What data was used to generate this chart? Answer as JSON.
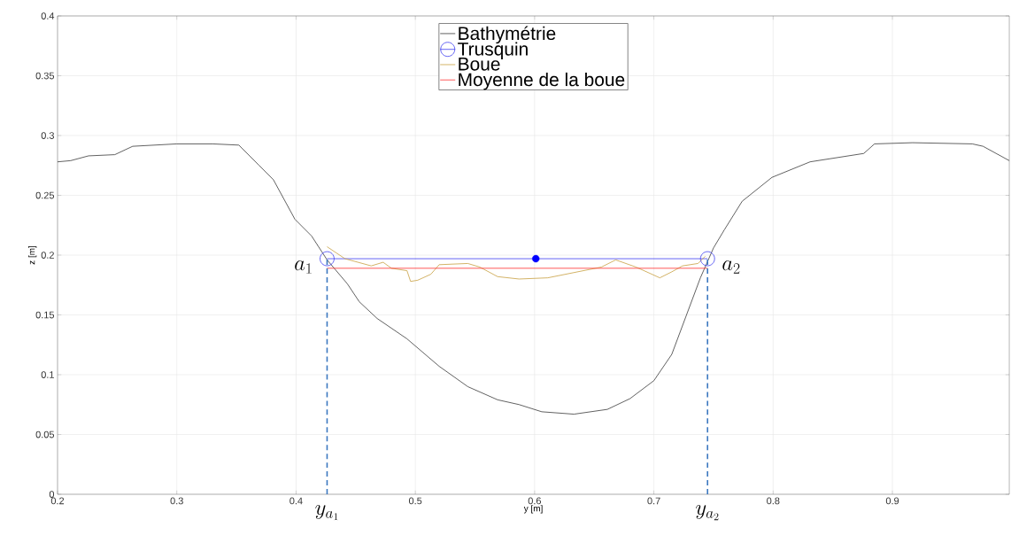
{
  "chart_data": {
    "type": "line",
    "xlabel": "y [m]",
    "ylabel": "z [m]",
    "xlim": [
      0.2,
      0.998
    ],
    "ylim": [
      0,
      0.4
    ],
    "xticks": [
      0.2,
      0.3,
      0.4,
      0.5,
      0.6,
      0.7,
      0.8,
      0.9
    ],
    "yticks": [
      0,
      0.05,
      0.1,
      0.15,
      0.2,
      0.25,
      0.3,
      0.35,
      0.4
    ],
    "grid": true,
    "legend": "top",
    "series": [
      {
        "name": "Bathymétrie",
        "color": "#3a3a3a",
        "x": [
          0.2,
          0.211,
          0.226,
          0.248,
          0.263,
          0.3,
          0.33,
          0.352,
          0.369,
          0.381,
          0.399,
          0.413,
          0.426,
          0.443,
          0.453,
          0.468,
          0.493,
          0.52,
          0.544,
          0.569,
          0.587,
          0.606,
          0.633,
          0.661,
          0.68,
          0.7,
          0.715,
          0.727,
          0.739,
          0.75,
          0.759,
          0.774,
          0.799,
          0.831,
          0.876,
          0.885,
          0.917,
          0.967,
          0.976,
          0.998
        ],
        "values": [
          0.278,
          0.279,
          0.283,
          0.284,
          0.291,
          0.293,
          0.293,
          0.292,
          0.275,
          0.263,
          0.23,
          0.216,
          0.196,
          0.176,
          0.161,
          0.147,
          0.13,
          0.107,
          0.09,
          0.079,
          0.075,
          0.069,
          0.067,
          0.071,
          0.08,
          0.095,
          0.117,
          0.149,
          0.181,
          0.206,
          0.221,
          0.245,
          0.265,
          0.278,
          0.285,
          0.293,
          0.294,
          0.293,
          0.291,
          0.279
        ]
      },
      {
        "name": "Trusquin",
        "color": "#3c3cf0",
        "marker": "circle",
        "x": [
          0.426,
          0.745
        ],
        "values": [
          0.197,
          0.197
        ]
      },
      {
        "type": "scatter",
        "color": "#0000ff",
        "marker": "circle",
        "x": [
          0.601
        ],
        "values": [
          0.197
        ]
      },
      {
        "name": "Boue",
        "color": "#c8a040",
        "x": [
          0.426,
          0.441,
          0.463,
          0.473,
          0.48,
          0.493,
          0.496,
          0.502,
          0.513,
          0.52,
          0.544,
          0.554,
          0.569,
          0.587,
          0.611,
          0.656,
          0.668,
          0.685,
          0.705,
          0.715,
          0.724,
          0.737,
          0.743
        ],
        "values": [
          0.207,
          0.197,
          0.191,
          0.194,
          0.189,
          0.187,
          0.178,
          0.179,
          0.184,
          0.192,
          0.193,
          0.19,
          0.182,
          0.18,
          0.181,
          0.19,
          0.196,
          0.19,
          0.181,
          0.186,
          0.191,
          0.193,
          0.199
        ]
      },
      {
        "name": "Moyenne de la boue",
        "color": "#ff3030",
        "x": [
          0.426,
          0.745
        ],
        "values": [
          0.189,
          0.189
        ]
      },
      {
        "color": "#3c78c0",
        "line_style": "dashed",
        "x": [
          0.426,
          0.426
        ],
        "values": [
          0,
          0.197
        ]
      },
      {
        "color": "#3c78c0",
        "line_style": "dashed",
        "x": [
          0.745,
          0.745
        ],
        "values": [
          0,
          0.197
        ]
      }
    ],
    "annotations": [
      "a_1",
      "a_2",
      "y_{a_1}",
      "y_{a_2}"
    ]
  }
}
